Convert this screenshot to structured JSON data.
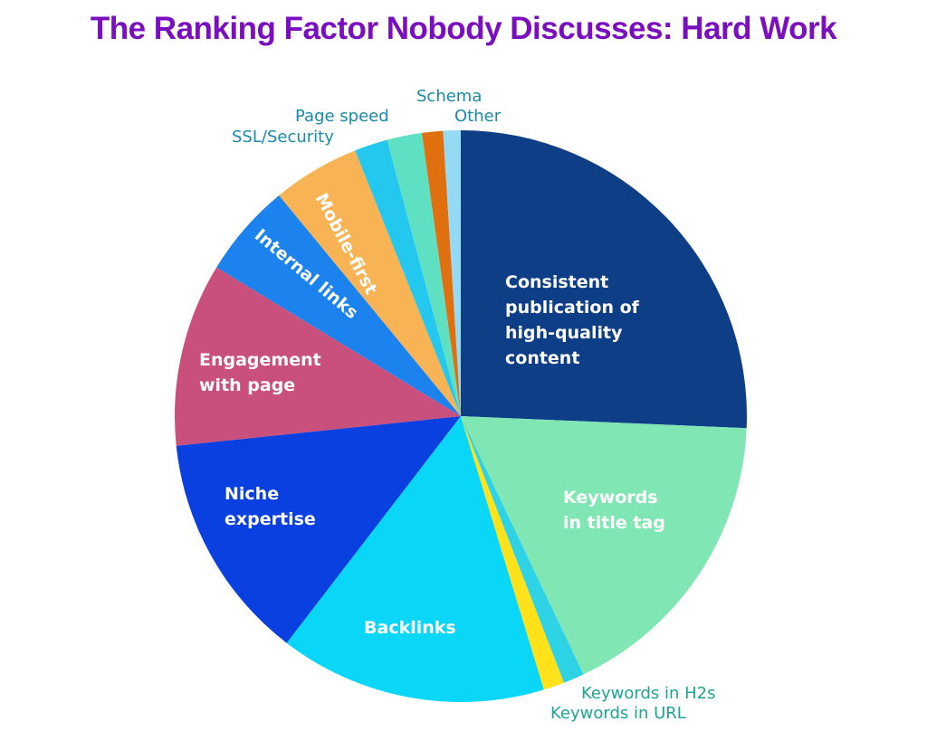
{
  "title": "The Ranking Factor Nobody Discusses: Hard Work",
  "chart_data": {
    "type": "pie",
    "title": "The Ranking Factor Nobody Discusses: Hard Work",
    "start_angle_deg": 0,
    "direction": "clockwise",
    "slices": [
      {
        "label": "Consistent publication of high-quality content",
        "value": 26.0,
        "color": "#0e3f86"
      },
      {
        "label": "Keywords in title tag",
        "value": 17.5,
        "color": "#80e6b4"
      },
      {
        "label": "Keywords in H2s",
        "value": 1.2,
        "color": "#2fd3e6"
      },
      {
        "label": "Keywords in URL",
        "value": 1.2,
        "color": "#ffe21a"
      },
      {
        "label": "Backlinks",
        "value": 15.3,
        "color": "#0ad6f7"
      },
      {
        "label": "Niche expertise",
        "value": 13.1,
        "color": "#0a3fe0"
      },
      {
        "label": "Engagement with page",
        "value": 10.5,
        "color": "#c9507d"
      },
      {
        "label": "Internal links",
        "value": 5.4,
        "color": "#1c83ee"
      },
      {
        "label": "Mobile-first",
        "value": 5.0,
        "color": "#f7b354"
      },
      {
        "label": "SSL/Security",
        "value": 1.9,
        "color": "#24c8ee"
      },
      {
        "label": "Page speed",
        "value": 2.0,
        "color": "#5fe0c3"
      },
      {
        "label": "Schema",
        "value": 1.2,
        "color": "#e0700f"
      },
      {
        "label": "Other",
        "value": 1.0,
        "color": "#94daf5"
      }
    ]
  },
  "labels": {
    "consistent": [
      "Consistent",
      "publication of",
      "high-quality",
      "content"
    ],
    "keywords_title": [
      "Keywords",
      "in title tag"
    ],
    "backlinks": "Backlinks",
    "niche": [
      "Niche",
      "expertise"
    ],
    "engagement": [
      "Engagement",
      "with page"
    ],
    "internal": "Internal links",
    "mobile": "Mobile-first",
    "ssl": "SSL/Security",
    "page_speed": "Page speed",
    "schema": "Schema",
    "other": "Other",
    "h2s": "Keywords in H2s",
    "url": "Keywords in URL"
  }
}
